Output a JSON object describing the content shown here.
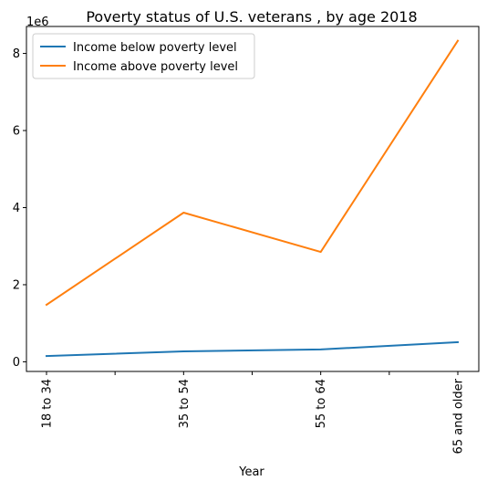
{
  "chart_data": {
    "type": "line",
    "title": "Poverty status of U.S. veterans , by age 2018",
    "xlabel": "Year",
    "ylabel": "",
    "y_offset_label": "1e6",
    "categories": [
      "18 to 34",
      "35 to 54",
      "55 to 64",
      "65 and older"
    ],
    "ylim": [
      -0.25,
      8.7
    ],
    "y_ticks": [
      0,
      2,
      4,
      6,
      8
    ],
    "y_tick_labels": [
      "0",
      "2",
      "4",
      "6",
      "8"
    ],
    "grid": false,
    "legend_position": "top-left",
    "series": [
      {
        "name": "Income below poverty level",
        "color": "#1f77b4",
        "values": [
          0.15,
          0.27,
          0.32,
          0.51
        ]
      },
      {
        "name": "Income above poverty level",
        "color": "#ff7f0e",
        "values": [
          1.48,
          3.87,
          2.85,
          8.33
        ]
      }
    ]
  }
}
